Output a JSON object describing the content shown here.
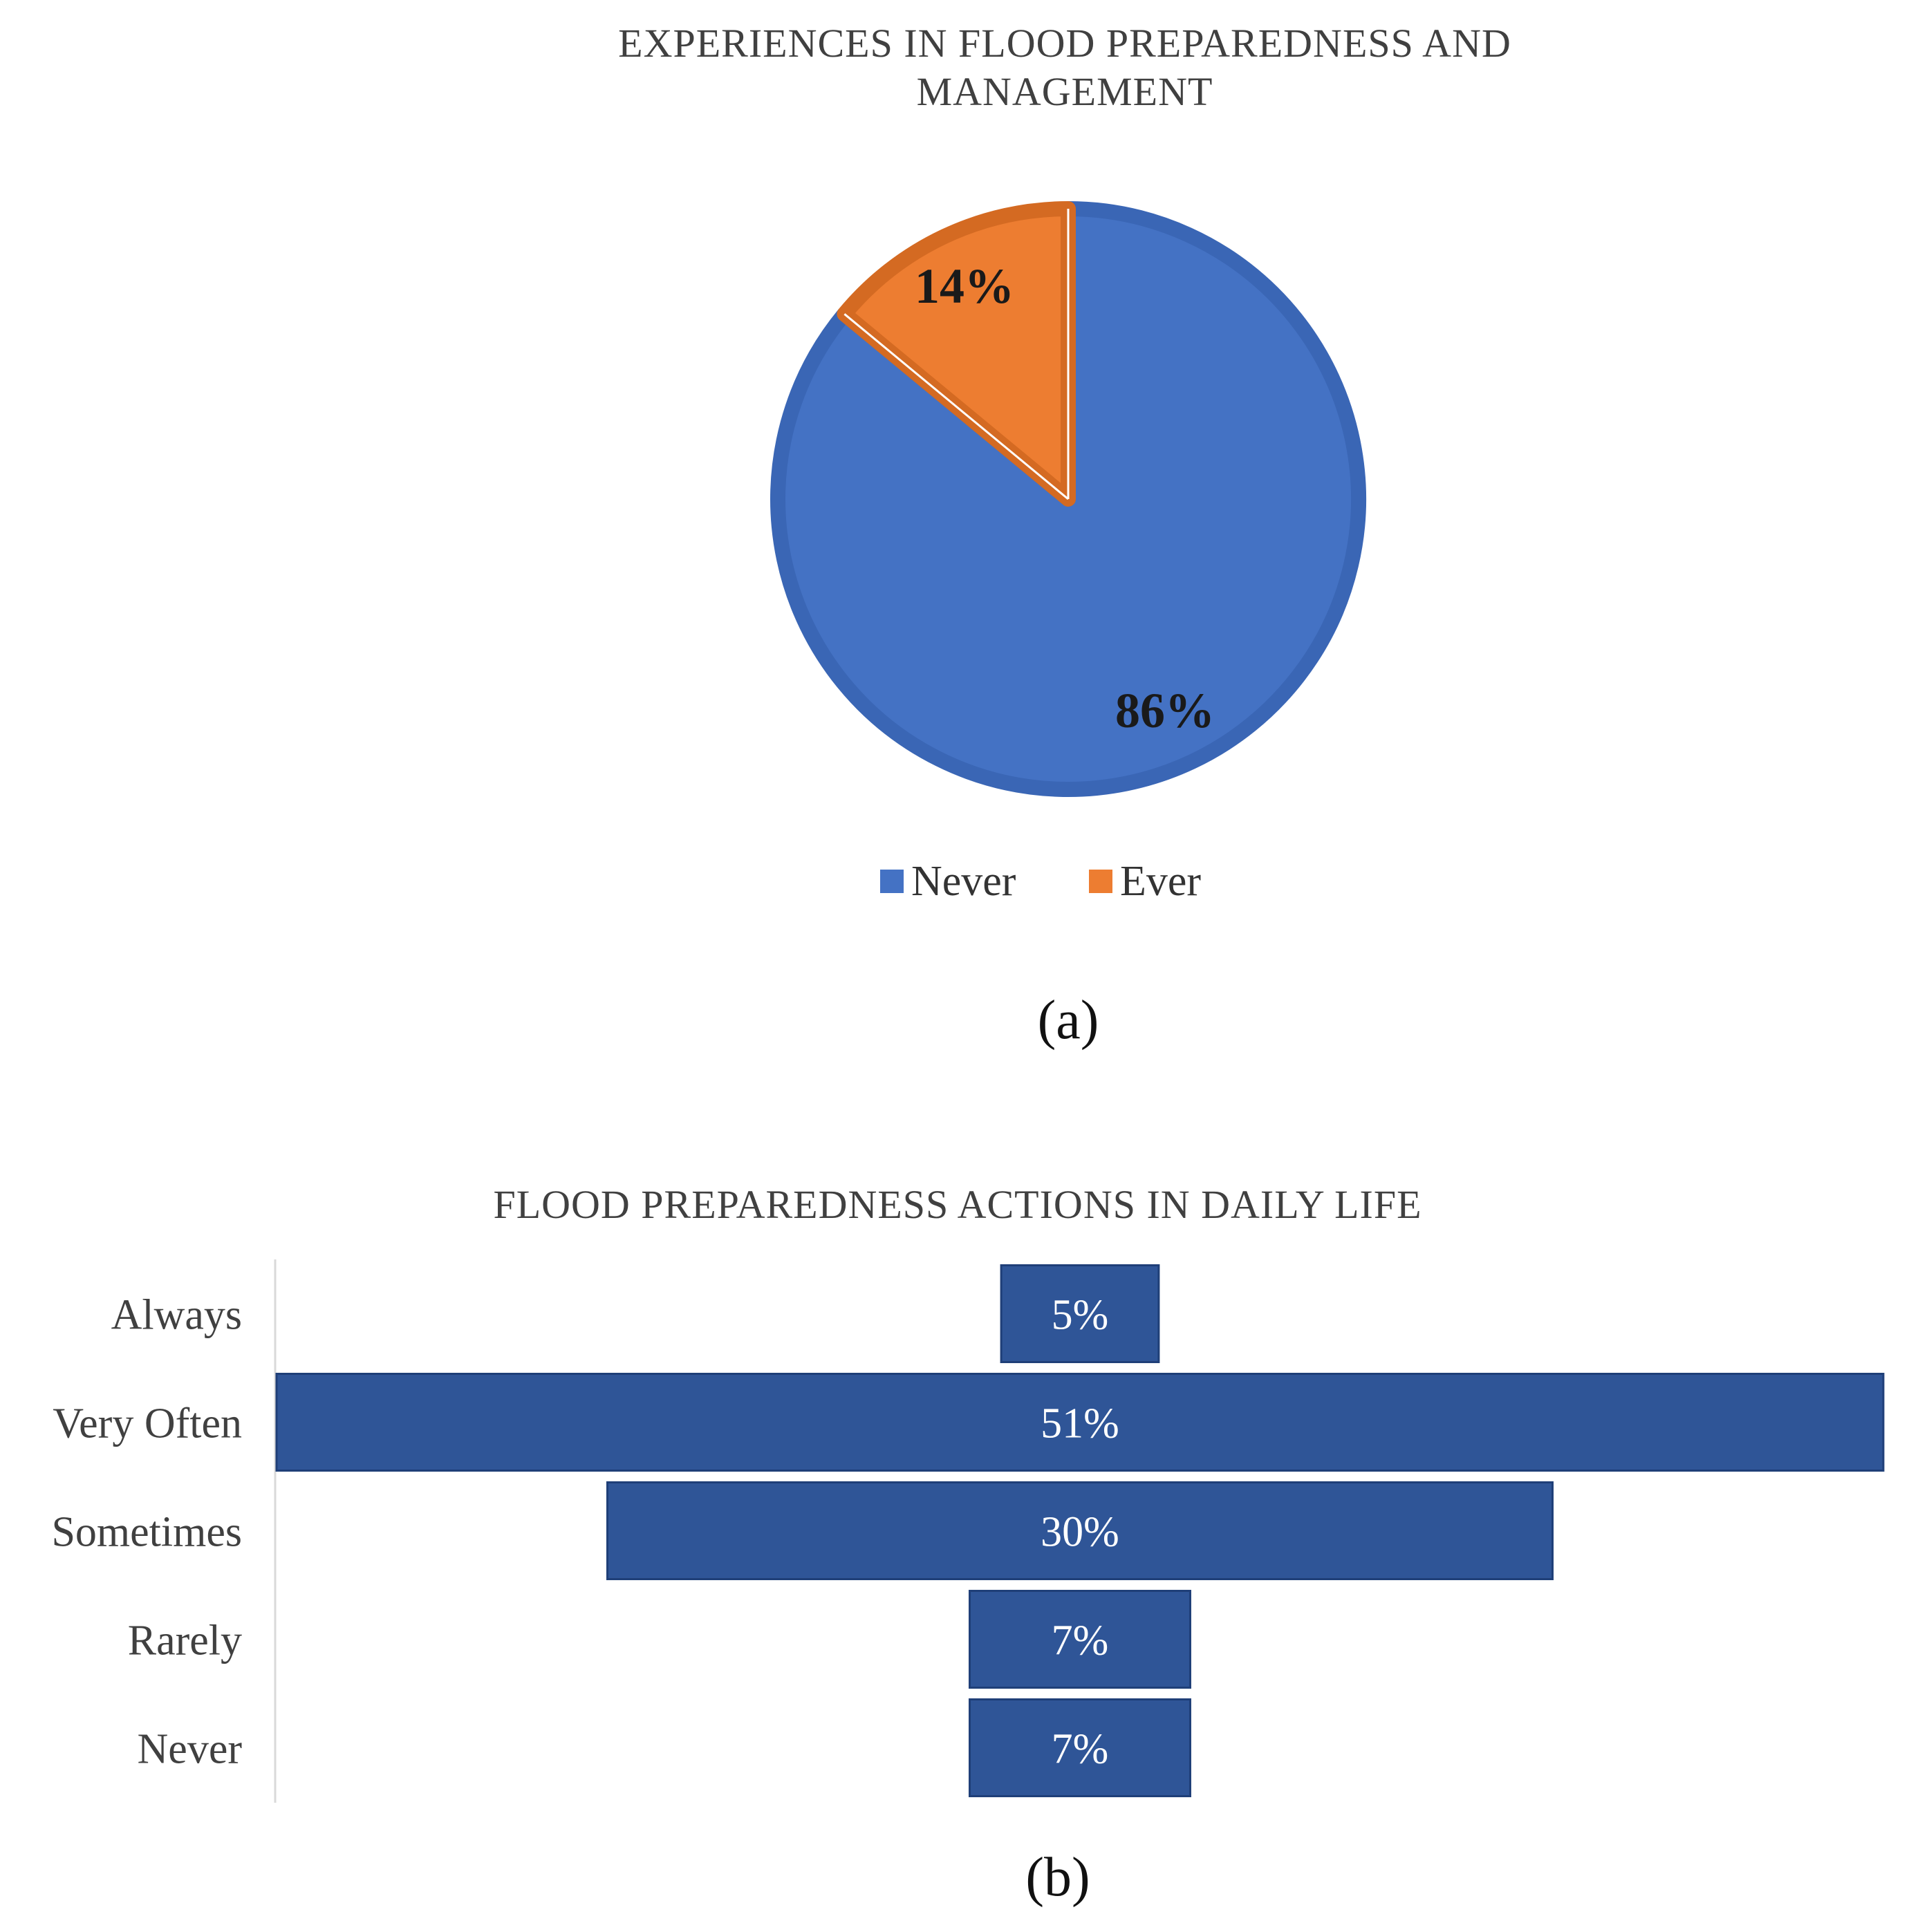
{
  "colors": {
    "never": "#4472C4",
    "never_edge": "#3A66B5",
    "ever": "#ED7D31",
    "ever_edge": "#D46A22",
    "bar": "#2F5597",
    "bar_edge": "#1F3F78"
  },
  "chart_data": [
    {
      "type": "pie",
      "title_lines": [
        "EXPERIENCES IN FLOOD PREPAREDNESS AND",
        "MANAGEMENT"
      ],
      "caption": "(a)",
      "legend_placement": "bottom",
      "slices": [
        {
          "label": "Never",
          "value": 86,
          "display": "86%"
        },
        {
          "label": "Ever",
          "value": 14,
          "display": "14%"
        }
      ]
    },
    {
      "type": "bar",
      "orientation": "horizontal",
      "layout": "centered",
      "title": "FLOOD PREPAREDNESS ACTIONS IN DAILY LIFE",
      "caption": "(b)",
      "categories": [
        "Always",
        "Very Often",
        "Sometimes",
        "Rarely",
        "Never"
      ],
      "values": [
        5,
        51,
        30,
        7,
        7
      ],
      "data_labels": [
        "5%",
        "51%",
        "30%",
        "7%",
        "7%"
      ],
      "grid": false
    }
  ]
}
